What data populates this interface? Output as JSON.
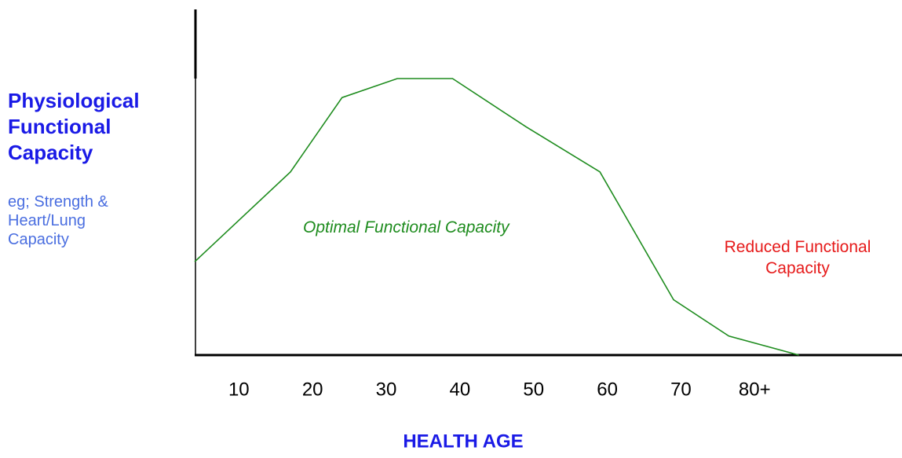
{
  "chart_data": {
    "type": "line",
    "title": "Physiological Functional Capacity",
    "subtitle": "eg; Strength & Heart/Lung Capacity",
    "x_label": "HEALTH AGE",
    "annotations": [
      "Optimal Functional Capacity",
      "Reduced Functional Capacity"
    ],
    "x": [
      4,
      17,
      24,
      31.5,
      39,
      49,
      59,
      69,
      76.5,
      86
    ],
    "series": [
      {
        "color": "#1e8c1e",
        "values": [
          27,
          53,
          74.5,
          80,
          80,
          66,
          53,
          16,
          5.5,
          0
        ]
      }
    ],
    "xlim": [
      4,
      100
    ],
    "xticks": [
      10,
      20,
      30,
      40,
      50,
      60,
      70,
      {
        "value": 80,
        "label": "80+"
      }
    ],
    "ylim": [
      0,
      100
    ]
  }
}
